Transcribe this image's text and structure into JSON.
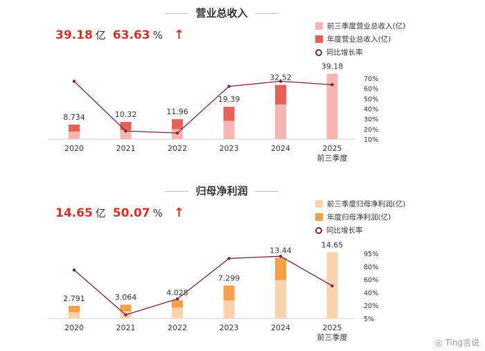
{
  "chart_data": [
    {
      "type": "bar",
      "title": "营业总收入",
      "headline": {
        "value": "39.18",
        "value_unit": "亿",
        "growth": "63.63",
        "growth_unit": "%",
        "arrow": "↑"
      },
      "categories": [
        "2020",
        "2021",
        "2022",
        "2023",
        "2024",
        "2025\n前三季度"
      ],
      "series": [
        {
          "name": "前三季度营业总收入(亿)",
          "type": "bar",
          "color": "#f7b5b0",
          "values": [
            4.6,
            5.4,
            6.0,
            11.0,
            20.8,
            39.18
          ]
        },
        {
          "name": "年度营业总收入(亿)",
          "type": "bar",
          "color": "#ea5f57",
          "values": [
            8.734,
            10.32,
            11.96,
            19.39,
            32.52,
            null
          ]
        },
        {
          "name": "同比增长率",
          "type": "line",
          "color": "#7a2246",
          "values": [
            67,
            18,
            16,
            62,
            67,
            63.63
          ]
        }
      ],
      "value_labels": [
        "8.734",
        "10.32",
        "11.96",
        "19.39",
        "32.52",
        "39.18"
      ],
      "bar_ylim": [
        0,
        46
      ],
      "right_axis": {
        "ticks": [
          "70%",
          "60%",
          "50%",
          "40%",
          "30%",
          "20%",
          "10%"
        ],
        "ylim": [
          10,
          70
        ]
      }
    },
    {
      "type": "bar",
      "title": "归母净利润",
      "headline": {
        "value": "14.65",
        "value_unit": "亿",
        "growth": "50.07",
        "growth_unit": "%",
        "arrow": "↑"
      },
      "categories": [
        "2020",
        "2021",
        "2022",
        "2023",
        "2024",
        "2025\n前三季度"
      ],
      "series": [
        {
          "name": "前三季度归母净利润(亿)",
          "type": "bar",
          "color": "#fad2ab",
          "values": [
            1.4,
            1.6,
            2.4,
            4.0,
            8.5,
            14.65
          ]
        },
        {
          "name": "年度归母净利润(亿)",
          "type": "bar",
          "color": "#f4a049",
          "values": [
            2.791,
            3.064,
            4.028,
            7.299,
            13.44,
            null
          ]
        },
        {
          "name": "同比增长率",
          "type": "line",
          "color": "#7a2246",
          "values": [
            72,
            10,
            32,
            88,
            91,
            50.07
          ]
        }
      ],
      "value_labels": [
        "2.791",
        "3.064",
        "4.028",
        "7.299",
        "13.44",
        "14.65"
      ],
      "bar_ylim": [
        0,
        16.4
      ],
      "right_axis": {
        "ticks": [
          "95%",
          "80%",
          "60%",
          "40%",
          "20%",
          "5%"
        ],
        "ylim": [
          5,
          95
        ]
      }
    }
  ],
  "watermark": "Ting言说"
}
